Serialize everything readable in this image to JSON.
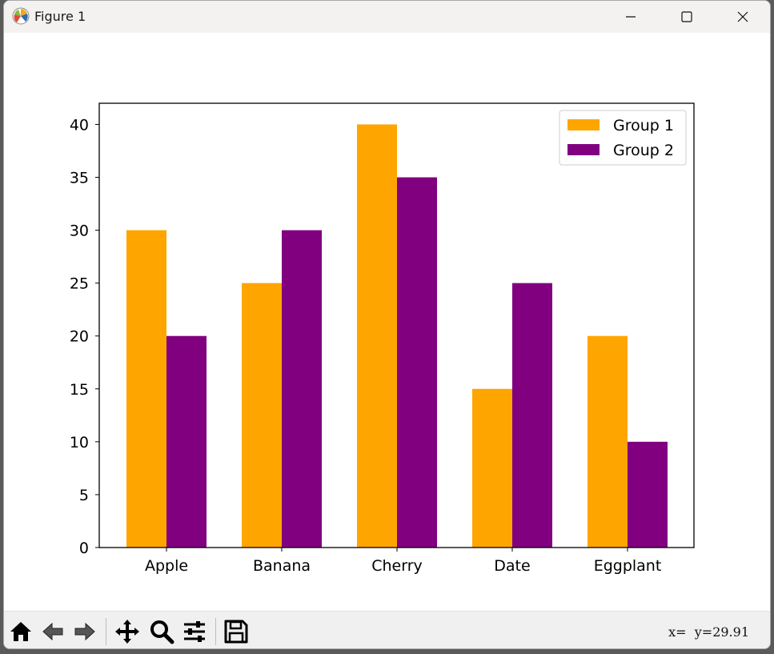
{
  "window": {
    "title": "Figure 1",
    "controls": [
      "minimize",
      "maximize",
      "close"
    ]
  },
  "toolbar": {
    "buttons": [
      {
        "name": "home",
        "icon": "home-icon"
      },
      {
        "name": "back",
        "icon": "arrow-left-icon"
      },
      {
        "name": "forward",
        "icon": "arrow-right-icon"
      },
      {
        "name": "pan",
        "icon": "move-icon"
      },
      {
        "name": "zoom",
        "icon": "magnifier-icon"
      },
      {
        "name": "configure-subplots",
        "icon": "sliders-icon"
      },
      {
        "name": "save",
        "icon": "floppy-disk-icon"
      }
    ],
    "coordinates": "x=  y=29.91"
  },
  "chart_data": {
    "type": "bar",
    "title": "",
    "xlabel": "",
    "ylabel": "",
    "categories": [
      "Apple",
      "Banana",
      "Cherry",
      "Date",
      "Eggplant"
    ],
    "series": [
      {
        "name": "Group 1",
        "values": [
          30,
          25,
          40,
          15,
          20
        ],
        "color": "#ffa500"
      },
      {
        "name": "Group 2",
        "values": [
          20,
          30,
          35,
          25,
          10
        ],
        "color": "#800080"
      }
    ],
    "ylim": [
      0,
      42
    ],
    "yticks": [
      0,
      5,
      10,
      15,
      20,
      25,
      30,
      35,
      40
    ],
    "grid": false,
    "legend": "top-right"
  }
}
